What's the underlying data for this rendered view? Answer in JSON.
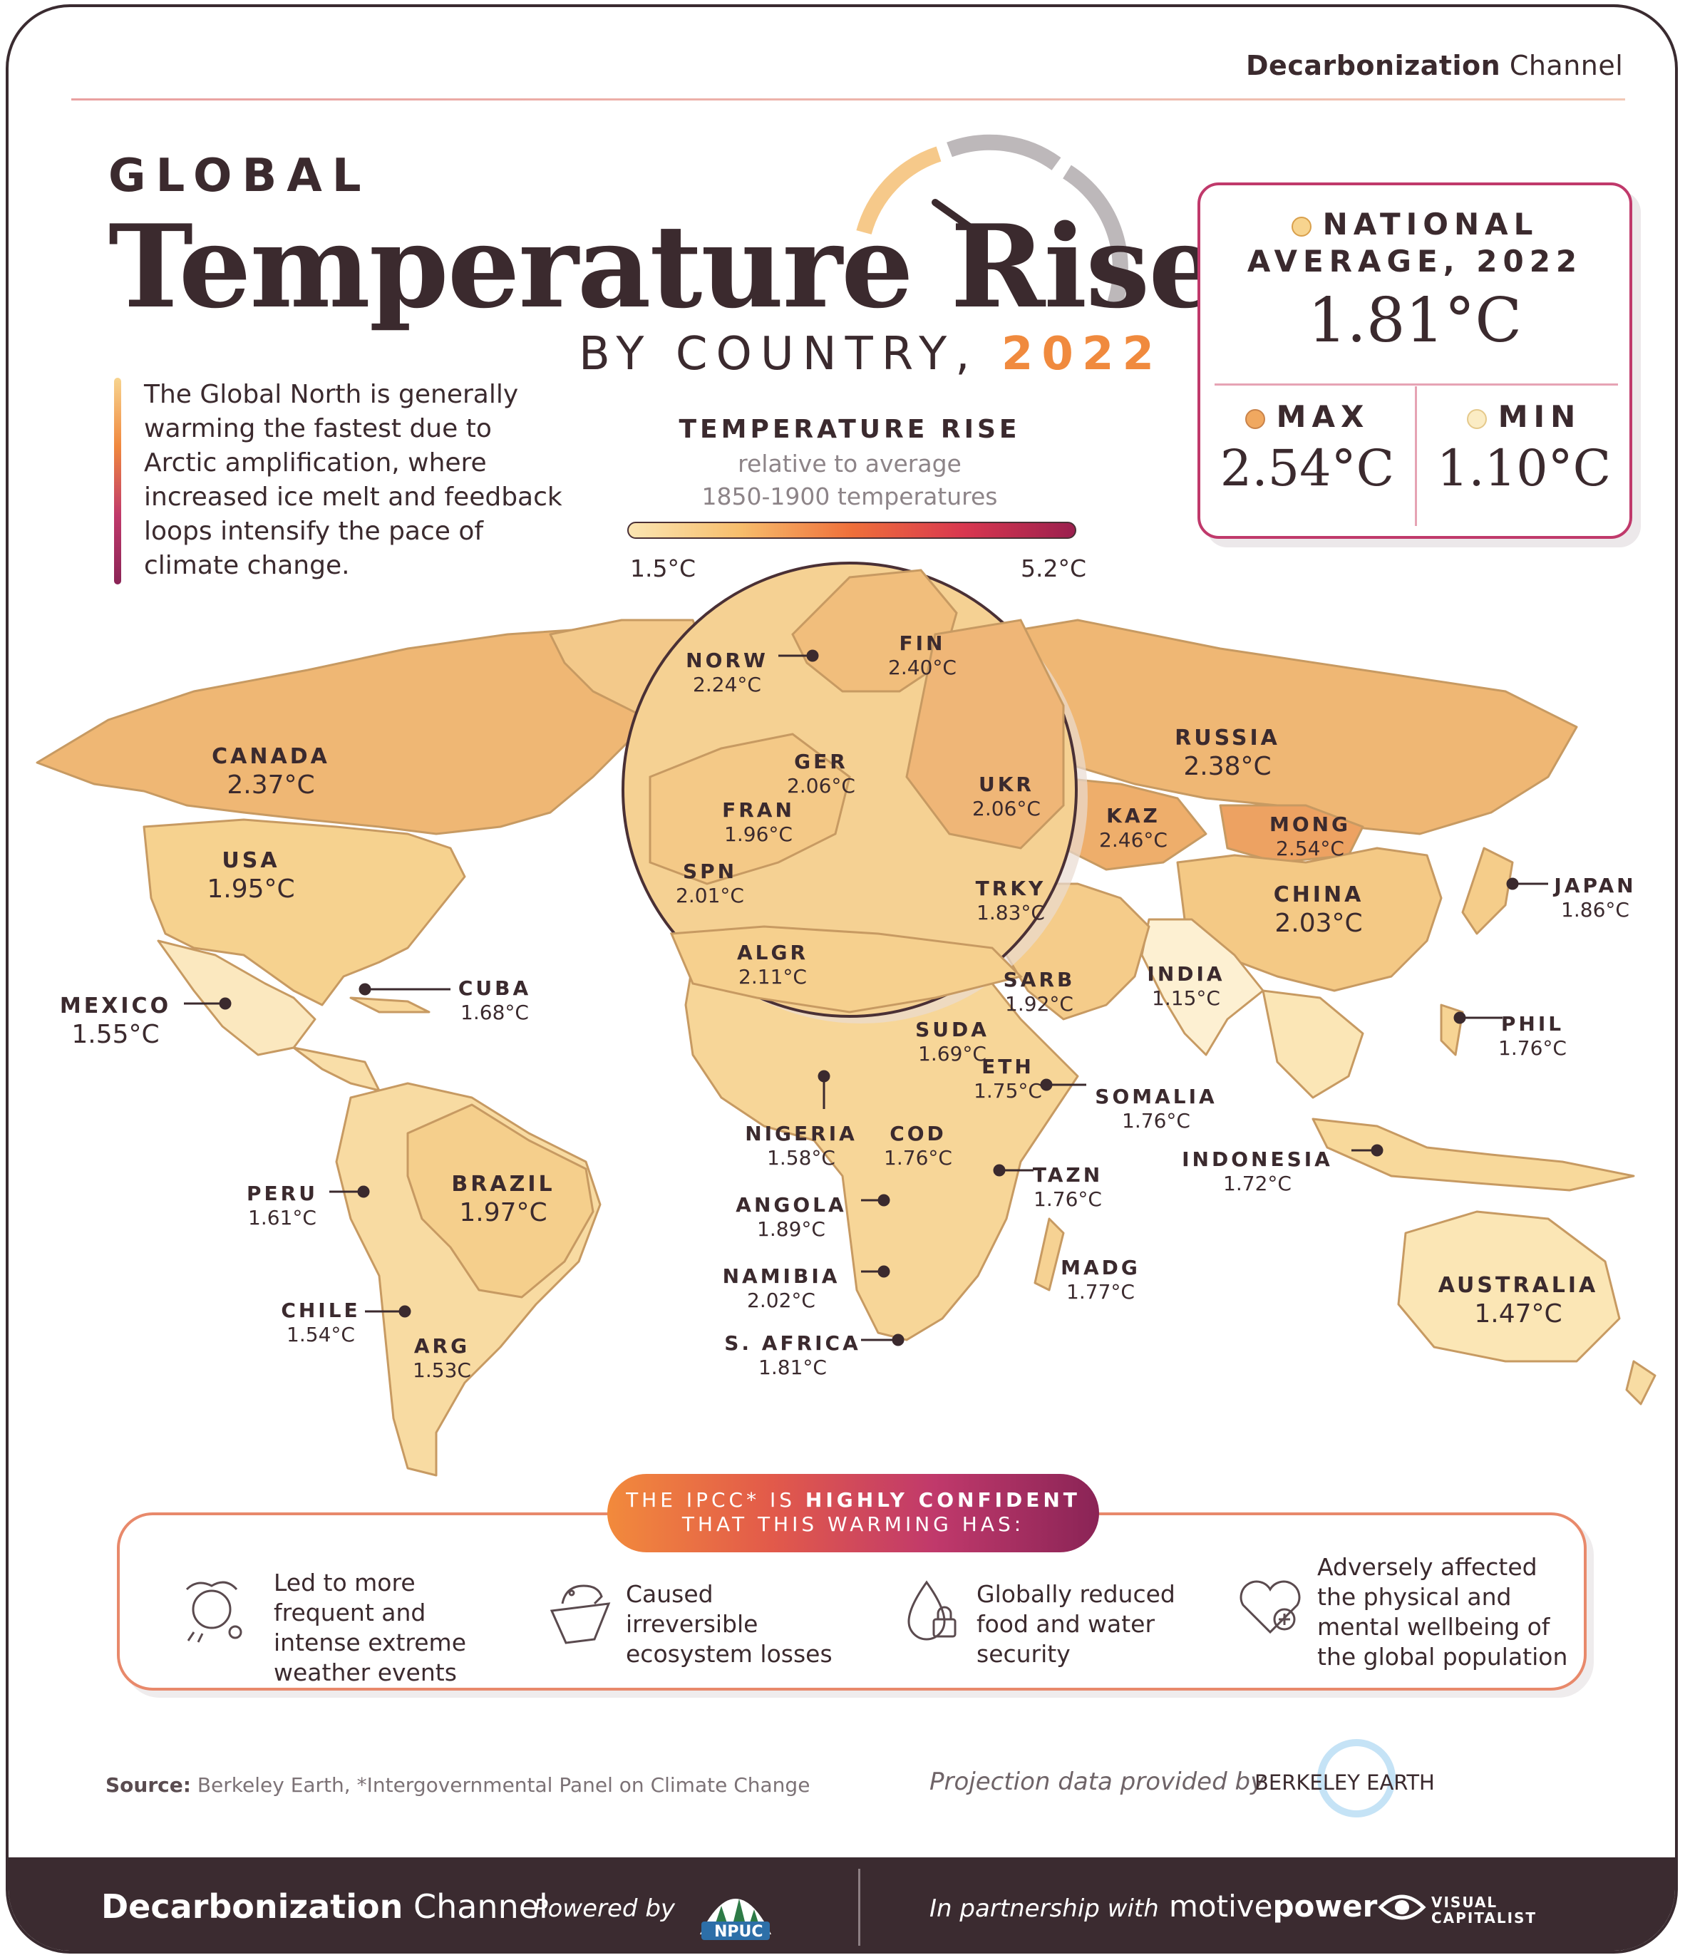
{
  "header": {
    "brand_bold": "Decarbonization",
    "brand_light": "Channel",
    "kicker": "GLOBAL",
    "title": "Temperature Rise",
    "subtitle": "BY COUNTRY,",
    "year": "2022"
  },
  "intro": "The Global North is generally warming the fastest due to Arctic amplification, where increased ice melt and feedback loops intensify the pace of climate change.",
  "legend": {
    "title": "TEMPERATURE RISE",
    "sub1": "relative to average",
    "sub2": "1850-1900 temperatures",
    "min": "1.5°C",
    "max": "5.2°C"
  },
  "stats": {
    "avg_label1": "NATIONAL",
    "avg_label2": "AVERAGE, 2022",
    "avg_value": "1.81°C",
    "max_label": "MAX",
    "max_value": "2.54°C",
    "min_label": "MIN",
    "min_value": "1.10°C",
    "colors": {
      "avg_dot": "#f7d48f",
      "max_dot": "#f0a860",
      "min_dot": "#fbecc4"
    }
  },
  "countries": [
    {
      "name": "CANADA",
      "value": "2.37°C",
      "big": true
    },
    {
      "name": "USA",
      "value": "1.95°C",
      "big": true
    },
    {
      "name": "MEXICO",
      "value": "1.55°C",
      "big": true
    },
    {
      "name": "CUBA",
      "value": "1.68°C"
    },
    {
      "name": "BRAZIL",
      "value": "1.97°C",
      "big": true
    },
    {
      "name": "PERU",
      "value": "1.61°C"
    },
    {
      "name": "CHILE",
      "value": "1.54°C"
    },
    {
      "name": "ARG",
      "value": "1.53C"
    },
    {
      "name": "NORW",
      "value": "2.24°C"
    },
    {
      "name": "FIN",
      "value": "2.40°C"
    },
    {
      "name": "GER",
      "value": "2.06°C"
    },
    {
      "name": "FRAN",
      "value": "1.96°C"
    },
    {
      "name": "UKR",
      "value": "2.06°C"
    },
    {
      "name": "SPN",
      "value": "2.01°C"
    },
    {
      "name": "TRKY",
      "value": "1.83°C"
    },
    {
      "name": "ALGR",
      "value": "2.11°C"
    },
    {
      "name": "RUSSIA",
      "value": "2.38°C",
      "big": true
    },
    {
      "name": "KAZ",
      "value": "2.46°C"
    },
    {
      "name": "MONG",
      "value": "2.54°C"
    },
    {
      "name": "CHINA",
      "value": "2.03°C",
      "big": true
    },
    {
      "name": "JAPAN",
      "value": "1.86°C"
    },
    {
      "name": "INDIA",
      "value": "1.15°C"
    },
    {
      "name": "SARB",
      "value": "1.92°C"
    },
    {
      "name": "SUDA",
      "value": "1.69°C"
    },
    {
      "name": "ETH",
      "value": "1.75°C"
    },
    {
      "name": "SOMALIA",
      "value": "1.76°C"
    },
    {
      "name": "PHIL",
      "value": "1.76°C"
    },
    {
      "name": "NIGERIA",
      "value": "1.58°C"
    },
    {
      "name": "COD",
      "value": "1.76°C"
    },
    {
      "name": "INDONESIA",
      "value": "1.72°C"
    },
    {
      "name": "ANGOLA",
      "value": "1.89°C"
    },
    {
      "name": "TAZN",
      "value": "1.76°C"
    },
    {
      "name": "NAMIBIA",
      "value": "2.02°C"
    },
    {
      "name": "MADG",
      "value": "1.77°C"
    },
    {
      "name": "S. AFRICA",
      "value": "1.81°C"
    },
    {
      "name": "AUSTRALIA",
      "value": "1.47°C",
      "big": true
    }
  ],
  "ipcc": {
    "pill_line1_a": "THE IPCC* IS ",
    "pill_line1_b": "HIGHLY CONFIDENT",
    "pill_line2": "THAT THIS WARMING HAS:",
    "impacts": [
      {
        "icon": "extreme-weather-icon",
        "text": "Led to more frequent and intense extreme weather events"
      },
      {
        "icon": "polar-bear-icon",
        "text": "Caused irreversible ecosystem losses"
      },
      {
        "icon": "water-lock-icon",
        "text": "Globally reduced food and water security"
      },
      {
        "icon": "heart-health-icon",
        "text": "Adversely affected the physical and mental wellbeing of the global population"
      }
    ]
  },
  "source": {
    "label": "Source:",
    "text": "Berkeley Earth, *Intergovernmental Panel on Climate Change"
  },
  "projection": {
    "text": "Projection data provided by",
    "org": "BERKELEY EARTH"
  },
  "footer": {
    "brand_bold": "Decarbonization",
    "brand_light": "Channel",
    "powered": "Powered by",
    "npuc": "NPUC",
    "partner": "In partnership with",
    "motive_a": "motive",
    "motive_b": "power",
    "vc": "VISUAL CAPITALIST"
  }
}
